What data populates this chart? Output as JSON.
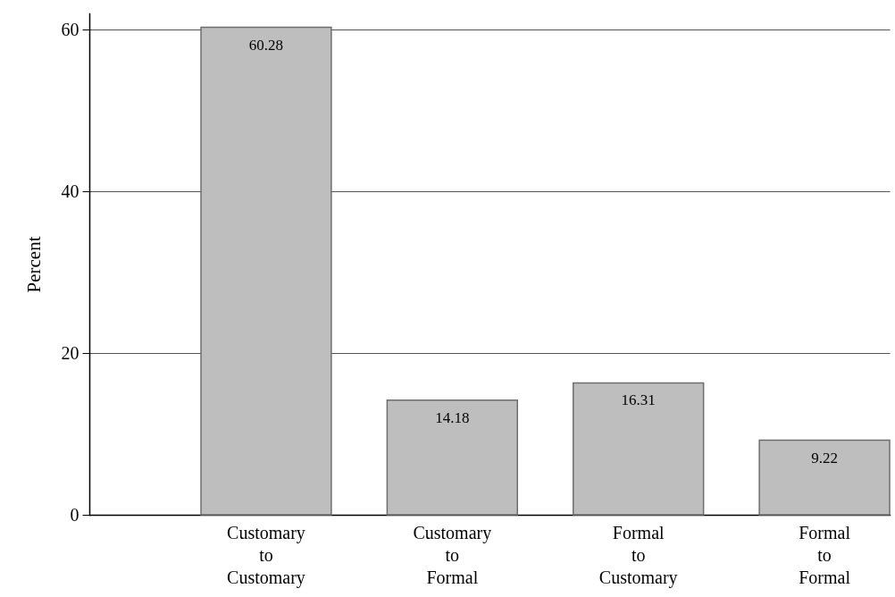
{
  "chart_data": {
    "type": "bar",
    "ylabel": "Percent",
    "categories": [
      "Customary to Customary",
      "Customary to Formal",
      "Formal to Customary",
      "Formal to Formal"
    ],
    "values": [
      60.28,
      14.18,
      16.31,
      9.22
    ],
    "color": "#bebebe",
    "ylim": [
      0,
      62
    ],
    "yticks": [
      0,
      20,
      40,
      60
    ],
    "grid": "y",
    "data_labels": true
  }
}
